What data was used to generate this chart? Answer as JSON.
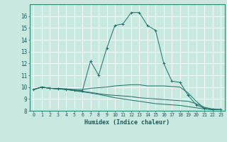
{
  "xlabel": "Humidex (Indice chaleur)",
  "ylabel": "",
  "background_color": "#c8e8e0",
  "grid_color": "#b0d8d0",
  "line_color": "#1a7068",
  "xlim": [
    -0.5,
    23.5
  ],
  "ylim": [
    8,
    17
  ],
  "xticks": [
    0,
    1,
    2,
    3,
    4,
    5,
    6,
    7,
    8,
    9,
    10,
    11,
    12,
    13,
    14,
    15,
    16,
    17,
    18,
    19,
    20,
    21,
    22,
    23
  ],
  "yticks": [
    8,
    9,
    10,
    11,
    12,
    13,
    14,
    15,
    16
  ],
  "curves": [
    {
      "x": [
        0,
        1,
        2,
        3,
        4,
        5,
        6,
        7,
        8,
        9,
        10,
        11,
        12,
        13,
        14,
        15,
        16,
        17,
        18,
        19,
        20,
        21,
        22,
        23
      ],
      "y": [
        9.8,
        10.0,
        9.9,
        9.9,
        9.85,
        9.8,
        9.8,
        9.9,
        9.95,
        10.0,
        10.1,
        10.15,
        10.2,
        10.2,
        10.1,
        10.1,
        10.1,
        10.05,
        10.0,
        9.5,
        8.8,
        8.2,
        8.1,
        8.1
      ],
      "marker": false
    },
    {
      "x": [
        0,
        1,
        2,
        3,
        4,
        5,
        6,
        7,
        8,
        9,
        10,
        11,
        12,
        13,
        14,
        15,
        16,
        17,
        18,
        19,
        20,
        21,
        22,
        23
      ],
      "y": [
        9.8,
        10.0,
        9.9,
        9.85,
        9.8,
        9.7,
        9.65,
        9.55,
        9.45,
        9.35,
        9.3,
        9.25,
        9.2,
        9.1,
        9.05,
        9.0,
        8.95,
        8.9,
        8.85,
        8.8,
        8.6,
        8.3,
        8.15,
        8.1
      ],
      "marker": false
    },
    {
      "x": [
        0,
        1,
        2,
        3,
        4,
        5,
        6,
        7,
        8,
        9,
        10,
        11,
        12,
        13,
        14,
        15,
        16,
        17,
        18,
        19,
        20,
        21,
        22,
        23
      ],
      "y": [
        9.8,
        10.0,
        9.9,
        9.85,
        9.8,
        9.7,
        9.6,
        9.5,
        9.38,
        9.25,
        9.1,
        9.0,
        8.9,
        8.8,
        8.7,
        8.6,
        8.55,
        8.5,
        8.45,
        8.35,
        8.25,
        8.15,
        8.1,
        8.1
      ],
      "marker": false
    },
    {
      "x": [
        0,
        1,
        2,
        3,
        4,
        5,
        6,
        7,
        8,
        9,
        10,
        11,
        12,
        13,
        14,
        15,
        16,
        17,
        18,
        19,
        20,
        21,
        22,
        23
      ],
      "y": [
        9.8,
        10.0,
        9.9,
        9.85,
        9.8,
        9.75,
        9.7,
        12.2,
        11.0,
        13.3,
        15.2,
        15.35,
        16.3,
        16.3,
        15.2,
        14.8,
        12.0,
        10.5,
        10.4,
        9.3,
        8.5,
        8.2,
        8.1,
        8.1
      ],
      "marker": true
    }
  ]
}
